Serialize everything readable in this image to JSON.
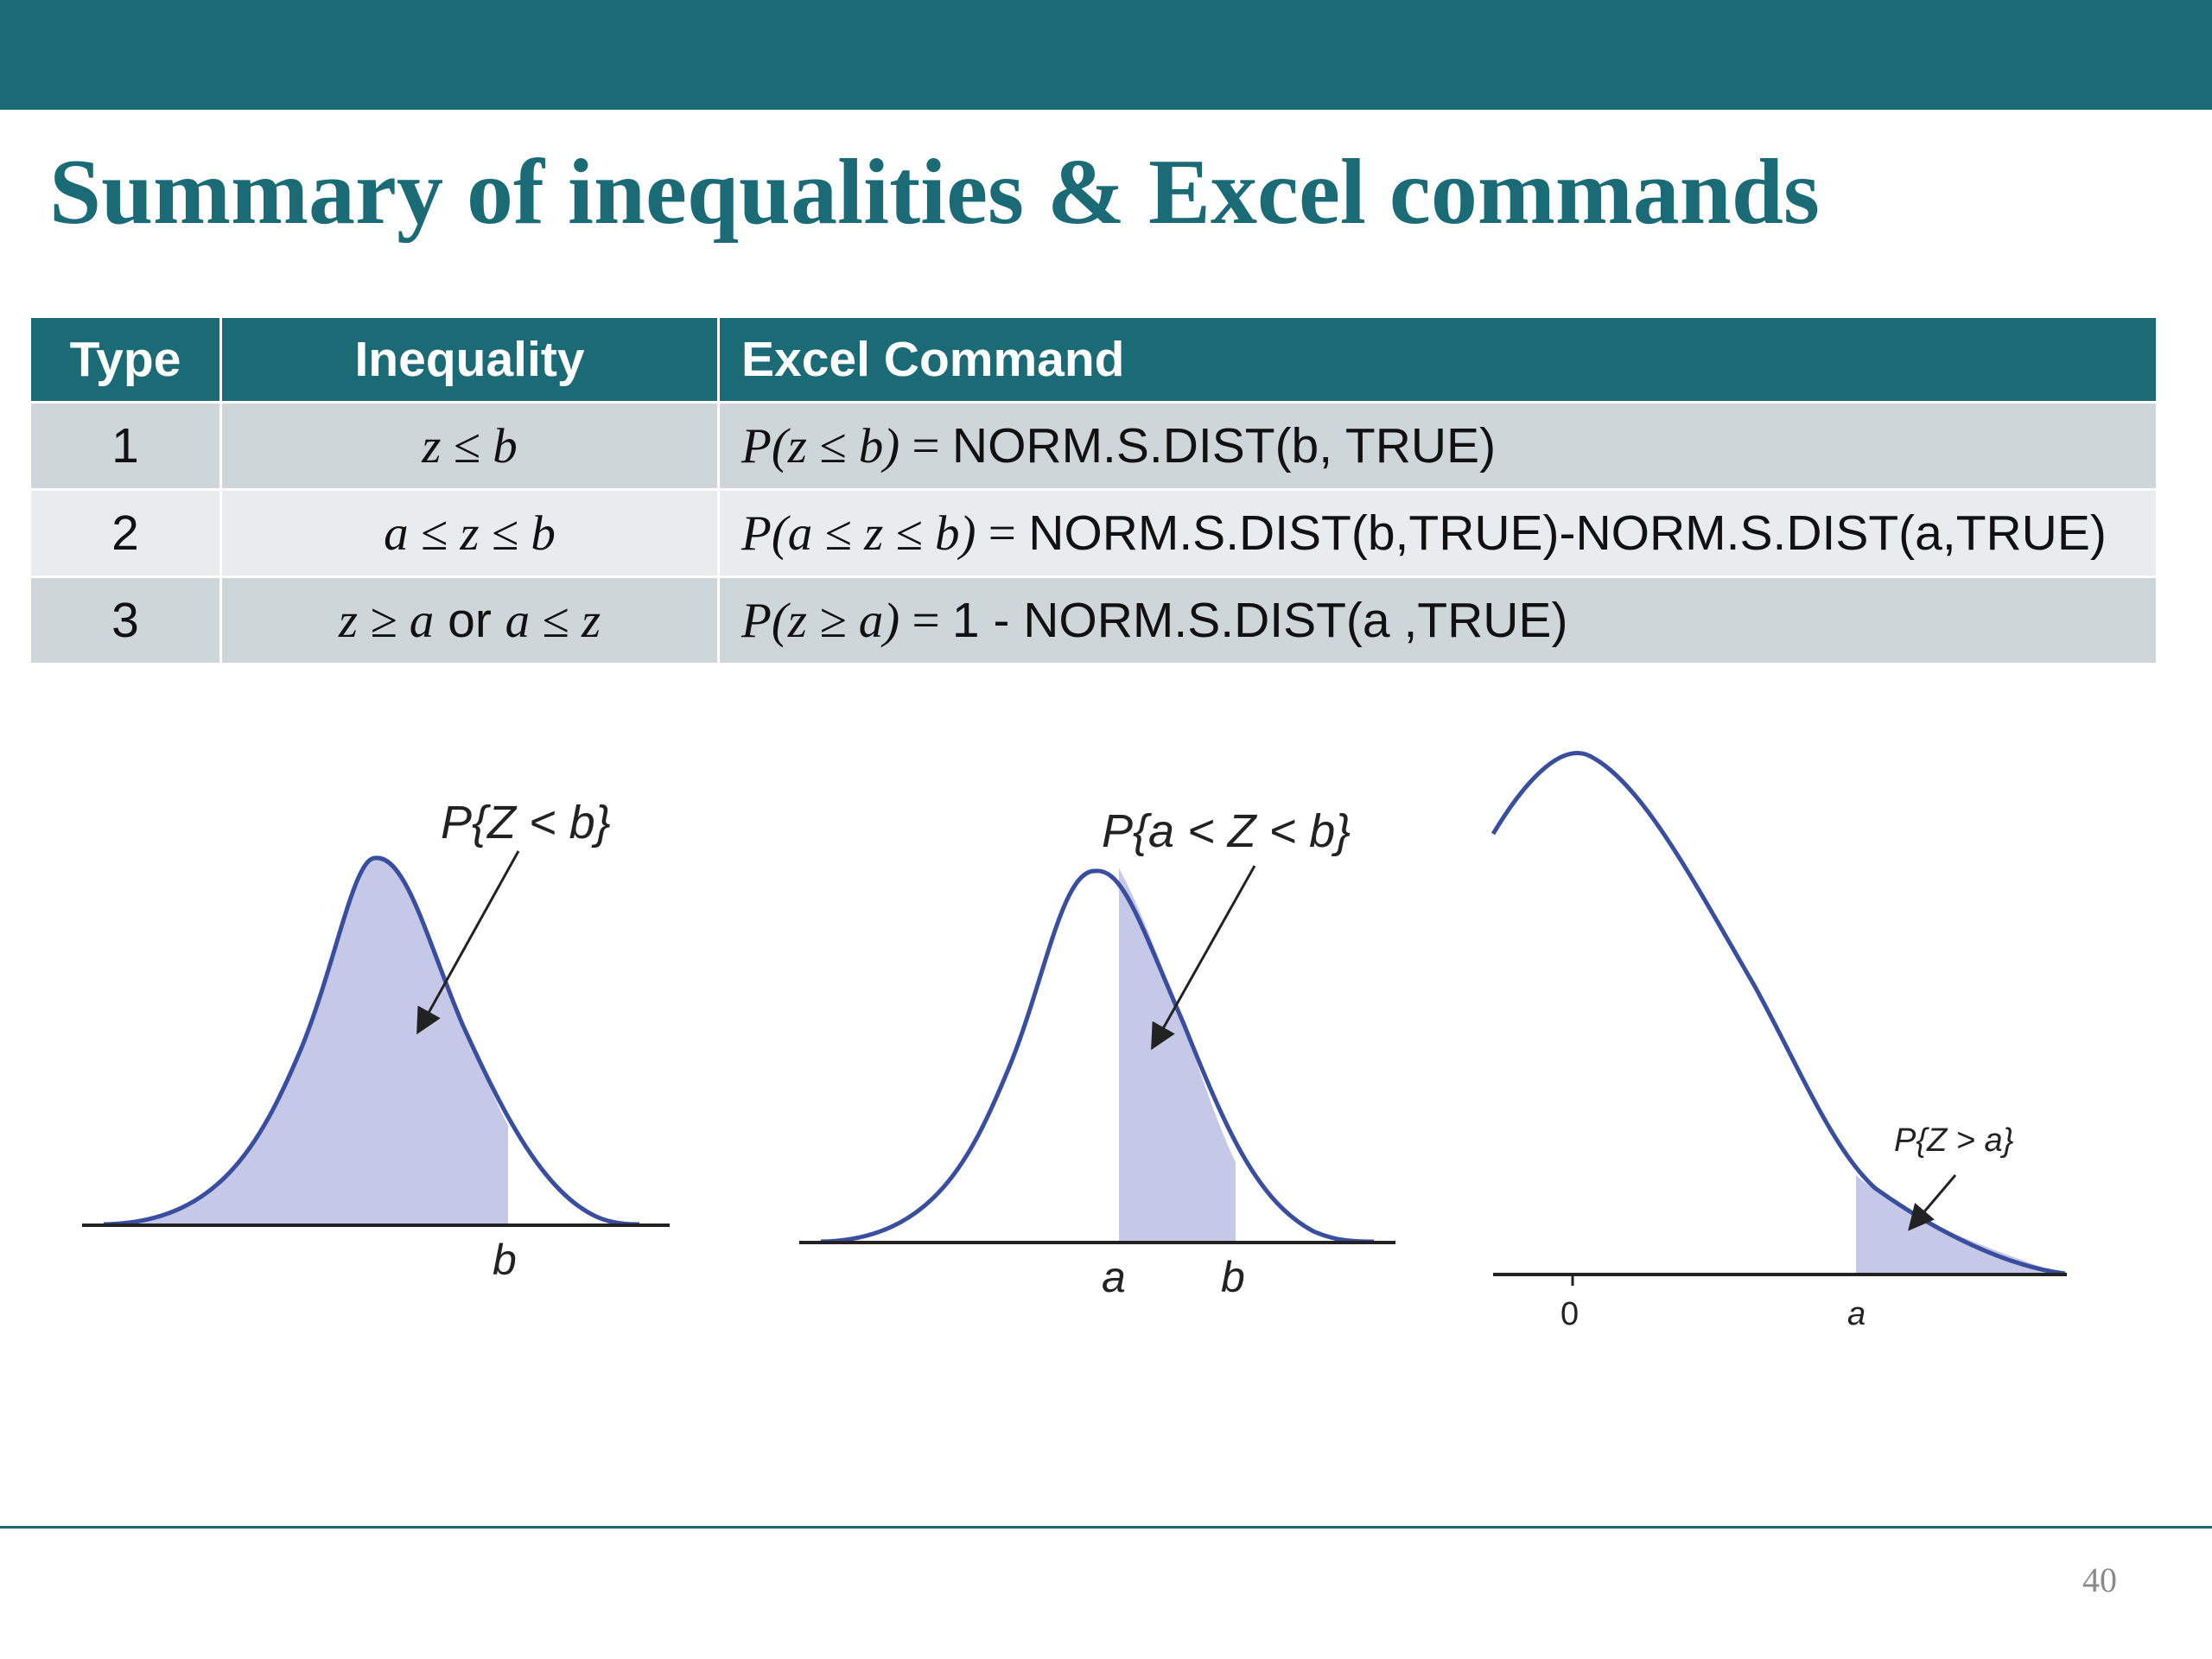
{
  "slide": {
    "title": "Summary of inequalities & Excel commands",
    "page_number": "40"
  },
  "table": {
    "headers": [
      "Type",
      "Inequality",
      "Excel Command"
    ],
    "rows": [
      {
        "type": "1",
        "ineq_lhs": "z ≤ b",
        "cmd_expr": "P(z ≤ b)",
        "cmd_eq": " = ",
        "cmd_formula": "NORM.S.DIST(b, TRUE)"
      },
      {
        "type": "2",
        "ineq_lhs": "a ≤ z ≤ b",
        "cmd_expr": "P(a ≤ z ≤ b)",
        "cmd_eq": " = ",
        "cmd_formula": "NORM.S.DIST(b,TRUE)-NORM.S.DIST(a,TRUE)"
      },
      {
        "type": "3",
        "ineq_part1": "z  ≥ a",
        "ineq_or": " or ",
        "ineq_part2": "a ≤ z",
        "cmd_expr": "P(z  ≥ a)",
        "cmd_eq": " = ",
        "cmd_formula": "1 - NORM.S.DIST(a ,TRUE)"
      }
    ]
  },
  "figures": {
    "left": {
      "label": "P{Z < b}",
      "axis_b": "b"
    },
    "middle": {
      "label": "P{a < Z < b}",
      "axis_a": "a",
      "axis_b": "b"
    },
    "right": {
      "label": "P{Z > a}",
      "axis_zero": "0",
      "axis_a": "a"
    }
  },
  "colors": {
    "header_bar": "#1b6b76",
    "shade": "#c5c8e6",
    "curve": "#3a4ea0"
  }
}
